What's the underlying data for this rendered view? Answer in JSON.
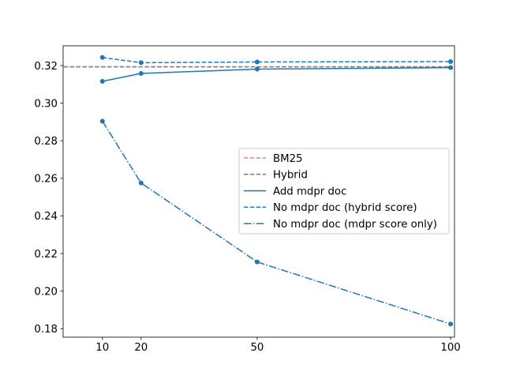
{
  "chart_data": {
    "type": "line",
    "title": "",
    "xlabel": "",
    "ylabel": "",
    "x_ticks": [
      10,
      20,
      50,
      100
    ],
    "x_tick_labels": [
      "10",
      "20",
      "50",
      "100"
    ],
    "xlim": [
      -0.15,
      101
    ],
    "y_ticks": [
      0.18,
      0.2,
      0.22,
      0.24,
      0.26,
      0.28,
      0.3,
      0.32
    ],
    "y_tick_labels": [
      "0.18",
      "0.20",
      "0.22",
      "0.24",
      "0.26",
      "0.28",
      "0.30",
      "0.32"
    ],
    "ylim": [
      0.1755,
      0.3305
    ],
    "grid": false,
    "legend_position": "center-right",
    "series": [
      {
        "name": "BM25",
        "style": "dashed",
        "color": "#e377c2",
        "markers": false,
        "x": [
          0,
          100
        ],
        "y": [
          0.3193,
          0.3193
        ]
      },
      {
        "name": "Hybrid",
        "style": "dashed",
        "color": "#7f7f7f",
        "markers": false,
        "x": [
          0,
          100
        ],
        "y": [
          0.3193,
          0.3193
        ]
      },
      {
        "name": "Add mdpr doc",
        "style": "solid",
        "color": "#1f77b4",
        "markers": true,
        "x": [
          10,
          20,
          50,
          100
        ],
        "y": [
          0.3116,
          0.3158,
          0.3181,
          0.3189
        ]
      },
      {
        "name": "No mdpr doc (hybrid score)",
        "style": "dashed",
        "color": "#1f77b4",
        "markers": true,
        "x": [
          10,
          20,
          50,
          100
        ],
        "y": [
          0.3243,
          0.3215,
          0.3219,
          0.3221
        ]
      },
      {
        "name": "No mdpr doc (mdpr score only)",
        "style": "dashdot",
        "color": "#1f77b4",
        "markers": true,
        "x": [
          10,
          20,
          50,
          100
        ],
        "y": [
          0.2904,
          0.2575,
          0.2155,
          0.1825
        ]
      }
    ]
  }
}
